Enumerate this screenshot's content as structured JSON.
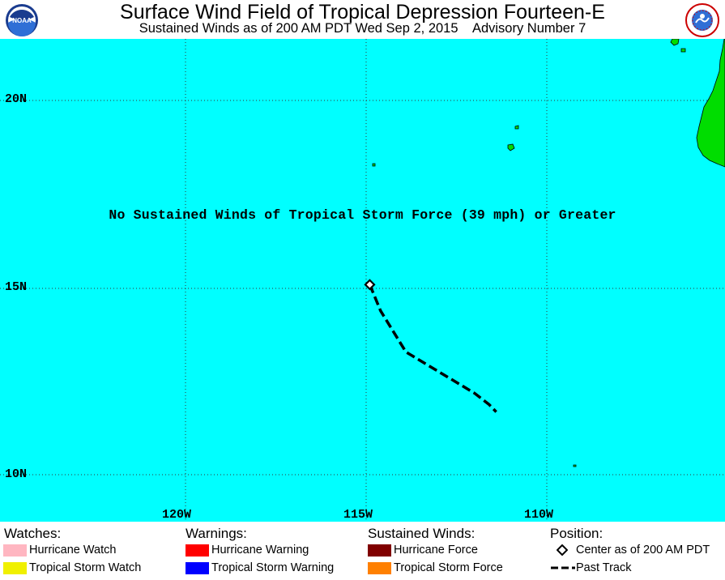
{
  "header": {
    "title": "Surface Wind Field of Tropical Depression Fourteen-E",
    "subtitle": "Sustained Winds as of 200 AM PDT Wed Sep 2, 2015    Advisory Number 7",
    "left_logo": "noaa-logo",
    "right_logo": "national-weather-service-logo"
  },
  "map": {
    "lat_labels": [
      "20N",
      "15N",
      "10N"
    ],
    "lon_labels": [
      "120W",
      "115W",
      "110W"
    ],
    "note": "No Sustained Winds of Tropical Storm Force (39 mph) or Greater",
    "colors": {
      "ocean": "#00ffff",
      "land": "#00dd00",
      "track": "#000000"
    },
    "storm_center": {
      "lat": 15.1,
      "lon": -114.9
    },
    "past_track": [
      {
        "lat": 15.1,
        "lon": -114.9
      },
      {
        "lat": 14.4,
        "lon": -114.6
      },
      {
        "lat": 13.3,
        "lon": -113.9
      },
      {
        "lat": 12.2,
        "lon": -112.0
      },
      {
        "lat": 11.9,
        "lon": -111.6
      },
      {
        "lat": 11.7,
        "lon": -111.4
      }
    ]
  },
  "legend": {
    "watches": {
      "heading": "Watches:",
      "items": [
        {
          "label": "Hurricane Watch",
          "color": "#ffb6c1"
        },
        {
          "label": "Tropical Storm Watch",
          "color": "#f0f000"
        }
      ]
    },
    "warnings": {
      "heading": "Warnings:",
      "items": [
        {
          "label": "Hurricane Warning",
          "color": "#ff0000"
        },
        {
          "label": "Tropical Storm Warning",
          "color": "#0000ff"
        }
      ]
    },
    "winds": {
      "heading": "Sustained Winds:",
      "items": [
        {
          "label": "Hurricane Force",
          "color": "#800000"
        },
        {
          "label": "Tropical Storm Force",
          "color": "#ff8000"
        }
      ]
    },
    "position": {
      "heading": "Position:",
      "items": [
        {
          "label": "Center as of 200 AM PDT",
          "icon": "diamond-icon"
        },
        {
          "label": "Past Track",
          "icon": "dashed-line-icon"
        }
      ]
    }
  }
}
